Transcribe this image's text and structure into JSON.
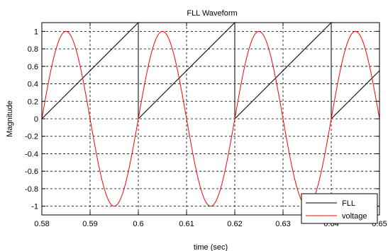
{
  "chart_data": {
    "type": "line",
    "title": "FLL Waveform",
    "xlabel": "time (sec)",
    "ylabel": "Magnitude",
    "xlim": [
      0.58,
      0.65
    ],
    "ylim": [
      -1.1,
      1.1
    ],
    "xticks": [
      0.58,
      0.59,
      0.6,
      0.61,
      0.62,
      0.63,
      0.64,
      0.65
    ],
    "xtick_labels": [
      "0.58",
      "0.59",
      "0.6",
      "0.61",
      "0.62",
      "0.63",
      "0.64",
      "0.65"
    ],
    "yticks": [
      1,
      0.8,
      0.6,
      0.4,
      0.2,
      0,
      -0.2,
      -0.4,
      -0.6,
      -0.8,
      -1
    ],
    "ytick_labels": [
      "1",
      "0.8",
      "0.6",
      "0.4",
      "0.2",
      "0",
      "-0.2",
      "-0.4",
      "-0.6",
      "-0.8",
      "-1"
    ],
    "grid": true,
    "grid_style": "dashed",
    "legend_position": "bottom-right",
    "series": [
      {
        "name": "FLL",
        "color": "#000000",
        "x": [
          0.58,
          0.6,
          0.6,
          0.62,
          0.62,
          0.64,
          0.64,
          0.65
        ],
        "y": [
          0.0,
          1.1,
          0.0,
          1.1,
          0.0,
          1.1,
          0.0,
          0.55
        ]
      },
      {
        "name": "voltage",
        "color": "#ff0000",
        "x": [
          0.58,
          0.5825,
          0.585,
          0.5875,
          0.59,
          0.5925,
          0.595,
          0.5975,
          0.6,
          0.6025,
          0.605,
          0.6075,
          0.61,
          0.6125,
          0.615,
          0.6175,
          0.62,
          0.6225,
          0.625,
          0.6275,
          0.63,
          0.6325,
          0.635,
          0.6375,
          0.64,
          0.6425,
          0.645,
          0.6475,
          0.65
        ],
        "y": [
          0.0,
          0.707,
          1.0,
          0.707,
          0.0,
          -0.707,
          -1.0,
          -0.707,
          0.0,
          0.707,
          1.0,
          0.707,
          0.0,
          -0.707,
          -1.0,
          -0.707,
          0.0,
          0.707,
          1.0,
          0.707,
          0.0,
          -0.707,
          -1.0,
          -0.707,
          0.0,
          0.707,
          1.0,
          0.707,
          0.0
        ]
      }
    ]
  }
}
